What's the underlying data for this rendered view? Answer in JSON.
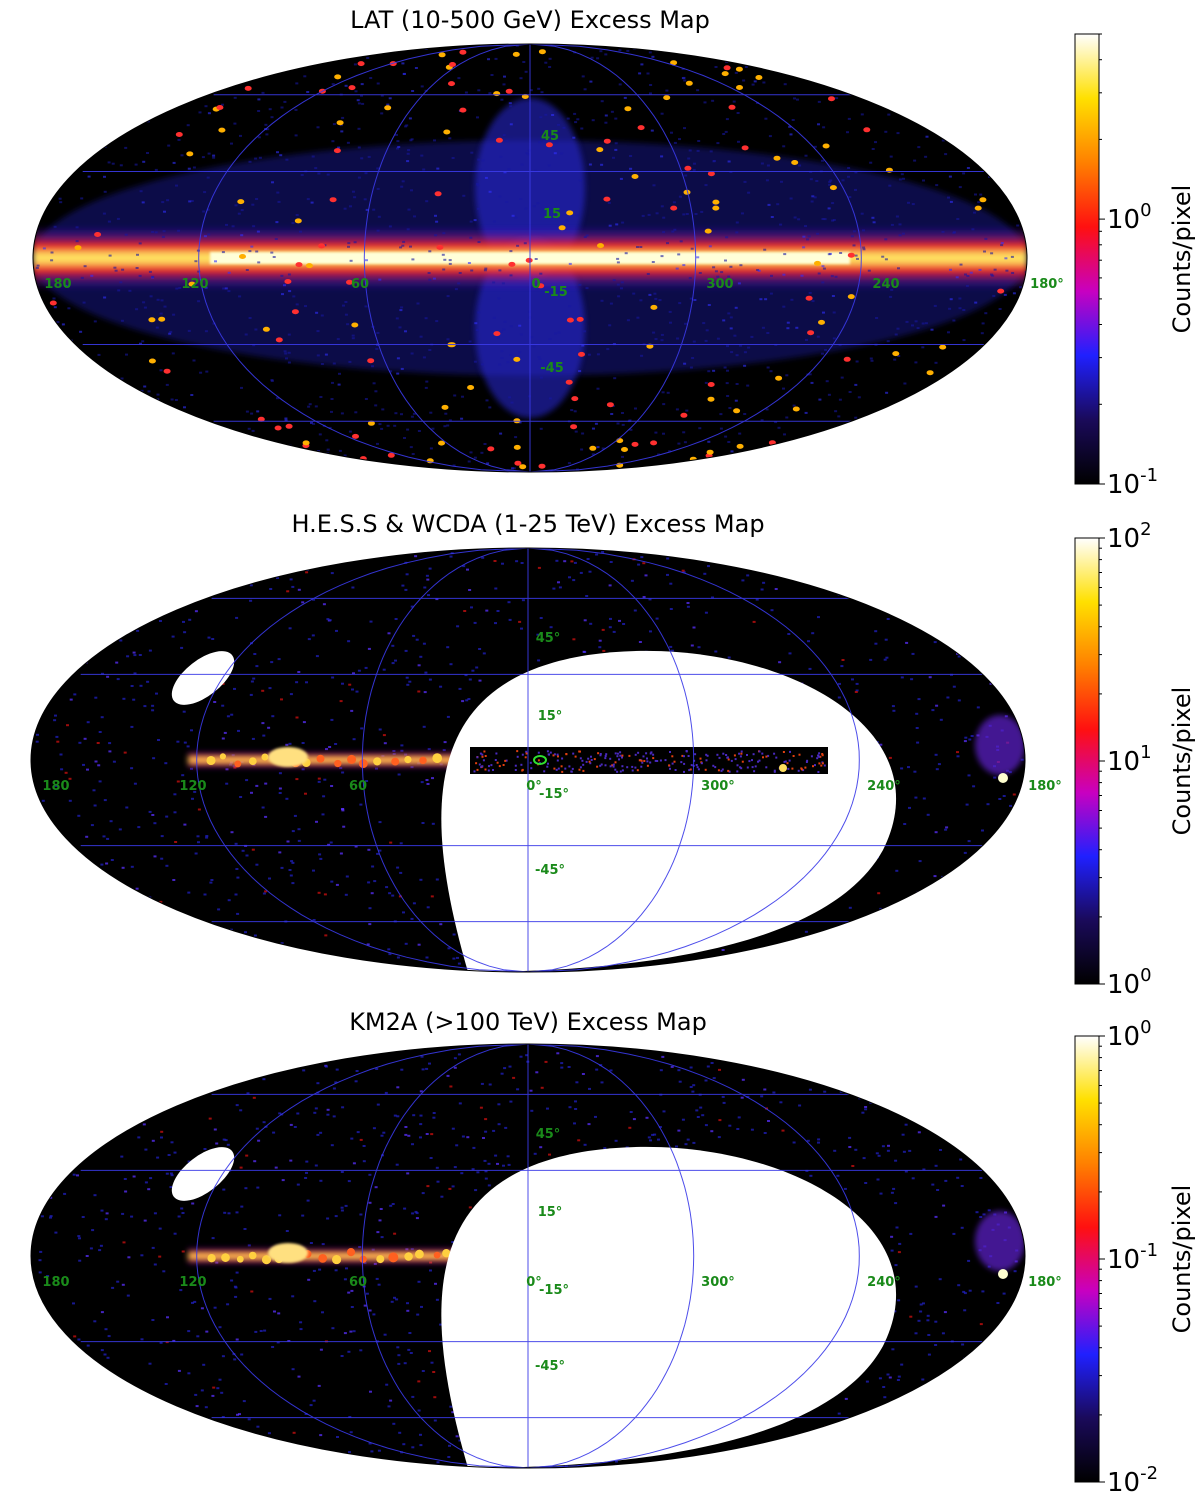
{
  "chart_data": [
    {
      "type": "heatmap",
      "projection": "mollweide",
      "title": "LAT (10-500 GeV) Excess Map",
      "colorbar": {
        "label": "Counts/pixel",
        "scale": "log",
        "ticks": [
          "10^0",
          "10^-1"
        ],
        "range": [
          0.1,
          5
        ]
      },
      "colormap": "gnuplot2",
      "longitude_labels": [
        "180",
        "120",
        "60",
        "0",
        "300",
        "240",
        "180°"
      ],
      "latitude_labels": [
        "45",
        "15",
        "-15",
        "-45"
      ],
      "white_mask": false,
      "hess_strip": false
    },
    {
      "type": "heatmap",
      "projection": "mollweide",
      "title": "H.E.S.S & WCDA (1-25 TeV) Excess Map",
      "colorbar": {
        "label": "Counts/pixel",
        "scale": "log",
        "ticks": [
          "10^2",
          "10^1",
          "10^0"
        ],
        "range": [
          1,
          100
        ]
      },
      "colormap": "gnuplot2",
      "longitude_labels": [
        "180",
        "120",
        "60",
        "0°",
        "300°",
        "240°",
        "180°"
      ],
      "latitude_labels": [
        "45°",
        "15°",
        "-15°",
        "-45°"
      ],
      "white_mask": true,
      "hess_strip": true
    },
    {
      "type": "heatmap",
      "projection": "mollweide",
      "title": "KM2A (>100 TeV) Excess Map",
      "colorbar": {
        "label": "Counts/pixel",
        "scale": "log",
        "ticks": [
          "10^0",
          "10^-1",
          "10^-2"
        ],
        "range": [
          0.01,
          1
        ]
      },
      "colormap": "gnuplot2",
      "longitude_labels": [
        "180",
        "120",
        "60",
        "0°",
        "300°",
        "240°",
        "180°"
      ],
      "latitude_labels": [
        "45°",
        "15°",
        "-15°",
        "-45°"
      ],
      "white_mask": true,
      "hess_strip": false
    }
  ],
  "colors": {
    "background": "#000000",
    "graticule": "#3a3ae8",
    "grid_label": "#1a8a1a",
    "mask": "#ffffff",
    "colormap_stops": [
      "#000000",
      "#1a0a5a",
      "#2020ff",
      "#c800c0",
      "#ff1010",
      "#ff8000",
      "#ffe000",
      "#ffffff"
    ]
  }
}
